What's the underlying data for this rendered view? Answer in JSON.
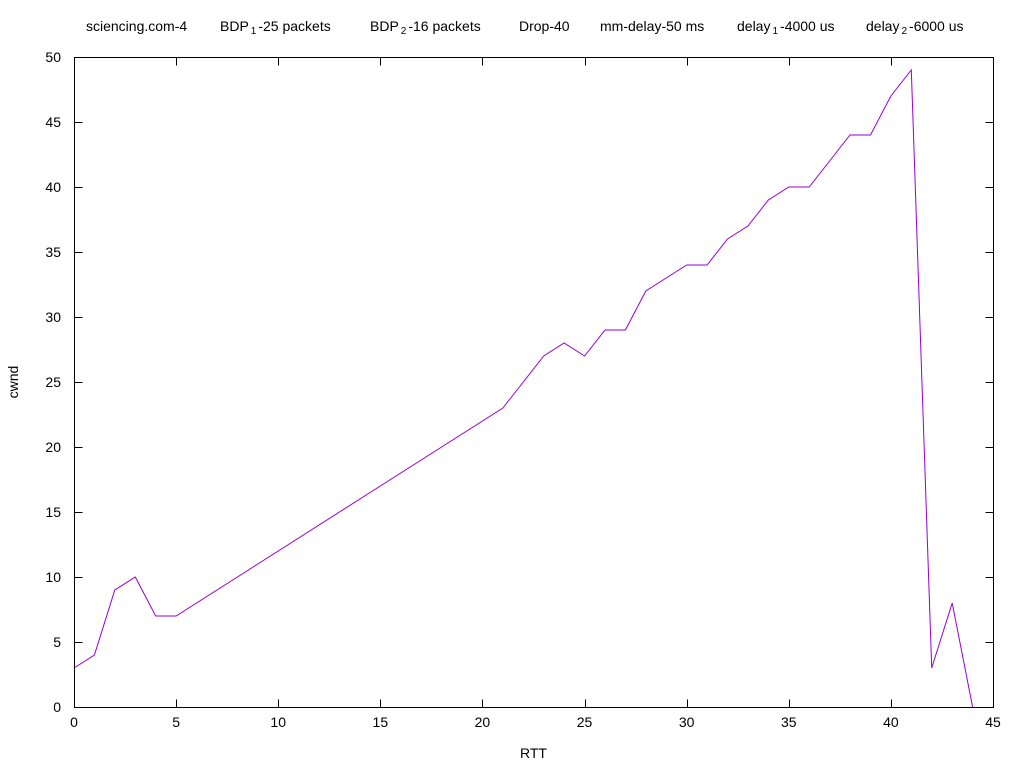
{
  "chart_data": {
    "type": "line",
    "title_parts": [
      {
        "pre": "sciencing.com-4",
        "sub": "",
        "post": ""
      },
      {
        "pre": "BDP",
        "sub": "1",
        "post": "-25 packets"
      },
      {
        "pre": "BDP",
        "sub": "2",
        "post": "-16 packets"
      },
      {
        "pre": "Drop-40",
        "sub": "",
        "post": ""
      },
      {
        "pre": "mm-delay-50 ms",
        "sub": "",
        "post": ""
      },
      {
        "pre": "delay",
        "sub": "1",
        "post": "-4000 us"
      },
      {
        "pre": "delay",
        "sub": "2",
        "post": "-6000 us"
      }
    ],
    "xlabel": "RTT",
    "ylabel": "cwnd",
    "xlim": [
      0,
      45
    ],
    "ylim": [
      0,
      50
    ],
    "xticks": [
      0,
      5,
      10,
      15,
      20,
      25,
      30,
      35,
      40,
      45
    ],
    "yticks": [
      0,
      5,
      10,
      15,
      20,
      25,
      30,
      35,
      40,
      45,
      50
    ],
    "grid": false,
    "series": [
      {
        "color": "#9400d3",
        "x": [
          0,
          1,
          2,
          3,
          4,
          5,
          21,
          22,
          23,
          24,
          25,
          26,
          27,
          28,
          29,
          30,
          31,
          32,
          33,
          34,
          35,
          36,
          37,
          38,
          39,
          40,
          41,
          42,
          43,
          44
        ],
        "y": [
          3,
          4,
          9,
          10,
          7,
          7,
          23,
          25,
          27,
          28,
          27,
          29,
          29,
          32,
          33,
          34,
          34,
          36,
          37,
          39,
          40,
          40,
          42,
          44,
          44,
          47,
          49,
          3,
          8,
          0
        ]
      }
    ]
  }
}
